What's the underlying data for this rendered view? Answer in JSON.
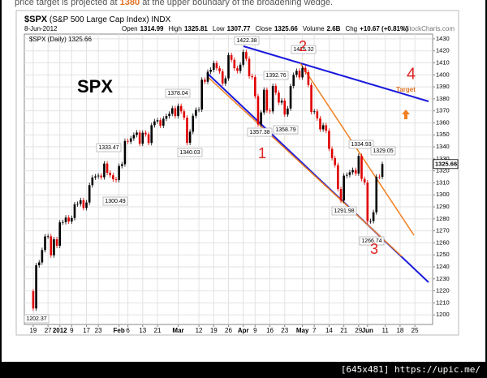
{
  "caption": {
    "before": "price target is projected at",
    "target": 1380,
    "after": "at the upper boundary of the broadening wedge."
  },
  "footer": "[645x481] https://upic.me/",
  "chart_data": {
    "type": "candlestick",
    "title": "$SPX",
    "subtitle": "(S&P 500 Large Cap Index)",
    "exchange": "INDX",
    "date": "8-Jun-2012",
    "source": "©StockCharts.com",
    "quote": [
      {
        "label": "Open",
        "value": 1314.99
      },
      {
        "label": "High",
        "value": 1325.81
      },
      {
        "label": "Low",
        "value": 1307.77
      },
      {
        "label": "Close",
        "value": 1325.66
      },
      {
        "label": "Volume",
        "value": "2.6B"
      },
      {
        "label": "Chg",
        "value": "+10.67 (+0.81%)"
      }
    ],
    "series_name": "$SPX (Daily)",
    "up_color": "#000000",
    "down_color": "#e00000",
    "open": [
      1219.66,
      1205.35,
      1241.3,
      1243.72,
      1254.0,
      1265.33,
      1265.43,
      1249.64,
      1263.02,
      1257.6,
      1277.06,
      1277.3,
      1281.06,
      1277.81,
      1280.7,
      1292.08,
      1292.48,
      1295.5,
      1289.09,
      1293.67,
      1308.04,
      1314.5,
      1315.38,
      1316.0,
      1314.65,
      1326.06,
      1318.43,
      1316.33,
      1313.01,
      1312.41,
      1324.09,
      1325.54,
      1344.9,
      1344.33,
      1347.05,
      1349.96,
      1351.95,
      1342.64,
      1351.77,
      1350.5,
      1343.23,
      1358.04,
      1361.23,
      1362.21,
      1357.66,
      1363.46,
      1365.74,
      1367.59,
      1372.18,
      1365.68,
      1374.09,
      1369.63,
      1364.33,
      1343.36,
      1352.63,
      1365.91,
      1370.87,
      1371.09,
      1395.95,
      1394.28,
      1402.6,
      1404.17,
      1409.75,
      1405.52,
      1402.89,
      1392.78,
      1397.11,
      1416.51,
      1412.52,
      1405.54,
      1403.28,
      1408.47,
      1419.04,
      1413.38,
      1398.96,
      1398.08,
      1382.2,
      1358.59,
      1368.71,
      1387.57,
      1370.26,
      1369.57,
      1390.78,
      1385.14,
      1376.92,
      1378.53,
      1366.94,
      1371.97,
      1390.69,
      1399.98,
      1403.36,
      1397.91,
      1405.82,
      1402.31,
      1391.57,
      1369.1,
      1369.58,
      1363.72,
      1354.58,
      1357.99,
      1353.39,
      1338.35,
      1330.66,
      1324.8,
      1304.86,
      1295.22,
      1315.99,
      1316.63,
      1318.86,
      1320.68,
      1317.82,
      1332.42,
      1313.32,
      1310.33,
      1278.04,
      1278.18,
      1285.5,
      1315.13,
      1314.99
    ],
    "close": [
      1205.35,
      1241.3,
      1243.72,
      1254.0,
      1265.33,
      1265.43,
      1249.64,
      1263.02,
      1257.6,
      1277.06,
      1277.3,
      1281.06,
      1277.81,
      1280.7,
      1292.08,
      1292.48,
      1295.5,
      1289.09,
      1293.67,
      1308.04,
      1314.5,
      1315.38,
      1316.0,
      1314.65,
      1326.06,
      1318.43,
      1316.33,
      1313.01,
      1312.41,
      1324.09,
      1325.54,
      1344.9,
      1344.33,
      1347.05,
      1349.96,
      1351.95,
      1342.64,
      1351.77,
      1350.5,
      1343.23,
      1358.04,
      1361.23,
      1362.21,
      1357.66,
      1363.46,
      1365.74,
      1367.59,
      1372.18,
      1365.68,
      1374.09,
      1369.63,
      1364.33,
      1343.36,
      1352.63,
      1365.91,
      1370.87,
      1371.09,
      1395.95,
      1394.28,
      1402.6,
      1404.17,
      1409.75,
      1405.52,
      1402.89,
      1392.78,
      1397.11,
      1416.51,
      1412.52,
      1405.54,
      1403.28,
      1408.47,
      1419.04,
      1413.38,
      1398.96,
      1398.08,
      1382.2,
      1358.59,
      1368.71,
      1387.57,
      1370.26,
      1369.57,
      1390.78,
      1385.14,
      1376.92,
      1378.53,
      1366.94,
      1371.97,
      1390.69,
      1399.98,
      1403.36,
      1397.91,
      1405.82,
      1402.31,
      1391.57,
      1369.1,
      1369.58,
      1363.72,
      1354.58,
      1357.99,
      1353.39,
      1338.35,
      1330.66,
      1324.8,
      1304.86,
      1295.22,
      1315.99,
      1316.63,
      1318.86,
      1320.68,
      1317.82,
      1332.42,
      1313.32,
      1310.33,
      1278.04,
      1278.18,
      1285.5,
      1315.13,
      1314.99,
      1325.66
    ],
    "xlim": [
      -3,
      135
    ],
    "xticks": [
      {
        "value": 0,
        "label": "19"
      },
      {
        "value": 5,
        "label": "27"
      },
      {
        "value": 9,
        "label": "2012"
      },
      {
        "value": 13,
        "label": "9"
      },
      {
        "value": 18,
        "label": "17"
      },
      {
        "value": 22,
        "label": "23"
      },
      {
        "value": 29,
        "label": "Feb"
      },
      {
        "value": 32,
        "label": "6"
      },
      {
        "value": 37,
        "label": "13"
      },
      {
        "value": 42,
        "label": "21"
      },
      {
        "value": 49,
        "label": "Mar"
      },
      {
        "value": 56,
        "label": "12"
      },
      {
        "value": 61,
        "label": "19"
      },
      {
        "value": 66,
        "label": "26"
      },
      {
        "value": 71,
        "label": "Apr"
      },
      {
        "value": 75,
        "label": "9"
      },
      {
        "value": 80,
        "label": "16"
      },
      {
        "value": 85,
        "label": "23"
      },
      {
        "value": 91,
        "label": "May"
      },
      {
        "value": 95,
        "label": "7"
      },
      {
        "value": 100,
        "label": "14"
      },
      {
        "value": 105,
        "label": "21"
      },
      {
        "value": 110,
        "label": "29"
      },
      {
        "value": 113,
        "label": "Jun"
      },
      {
        "value": 119,
        "label": "11"
      },
      {
        "value": 124,
        "label": "18"
      },
      {
        "value": 129,
        "label": "25"
      }
    ],
    "ylim": [
      1192,
      1434
    ],
    "yticks": [
      1200,
      1210,
      1220,
      1230,
      1240,
      1250,
      1260,
      1270,
      1280,
      1290,
      1300,
      1310,
      1320,
      1330,
      1340,
      1350,
      1360,
      1370,
      1380,
      1390,
      1400,
      1410,
      1420,
      1430
    ],
    "grid": true,
    "price_labels": [
      1202.37,
      1300.49,
      1333.47,
      1378.04,
      1340.03,
      1422.38,
      1415.32,
      1392.76,
      1357.38,
      1358.79,
      1334.93,
      1329.05,
      1291.98,
      1266.74
    ],
    "annotations": [
      "SPX",
      "1",
      "2",
      "3",
      "4",
      "Target"
    ]
  }
}
